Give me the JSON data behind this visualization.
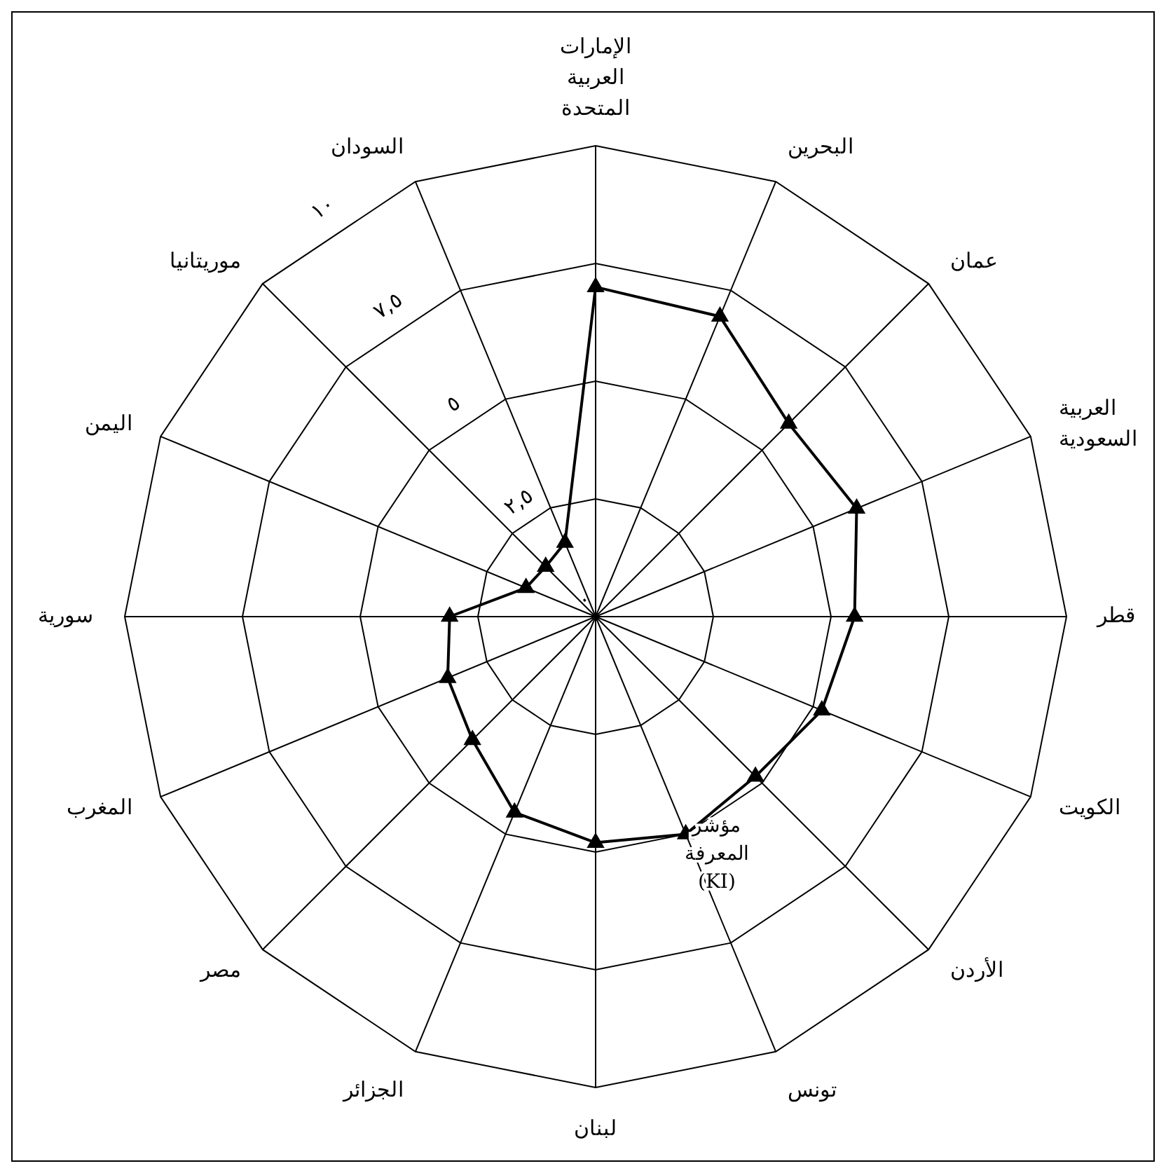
{
  "chart_data": {
    "type": "radar",
    "categories": [
      "الإمارات العربية المتحدة",
      "البحرين",
      "عمان",
      "العربية السعودية",
      "قطر",
      "الكويت",
      "الأردن",
      "تونس",
      "لبنان",
      "الجزائر",
      "مصر",
      "المغرب",
      "سورية",
      "اليمن",
      "موريتانيا",
      "السودان"
    ],
    "series": [
      {
        "name": "مؤشر المعرفة (KI)",
        "color": "#000000",
        "values": [
          7.0,
          6.9,
          5.8,
          6.0,
          5.5,
          5.2,
          4.8,
          5.0,
          4.8,
          4.5,
          3.7,
          3.4,
          3.1,
          1.6,
          1.5,
          1.7
        ]
      }
    ],
    "ylim": [
      0,
      10
    ],
    "yticks": [
      {
        "value": 0,
        "label": "٠"
      },
      {
        "value": 2.5,
        "label": "٢,٥"
      },
      {
        "value": 5,
        "label": "٥"
      },
      {
        "value": 7.5,
        "label": "٧,٥"
      },
      {
        "value": 10,
        "label": "١٠"
      }
    ],
    "grid": true,
    "marker": "triangle",
    "line_style": "solid",
    "legend": false
  }
}
